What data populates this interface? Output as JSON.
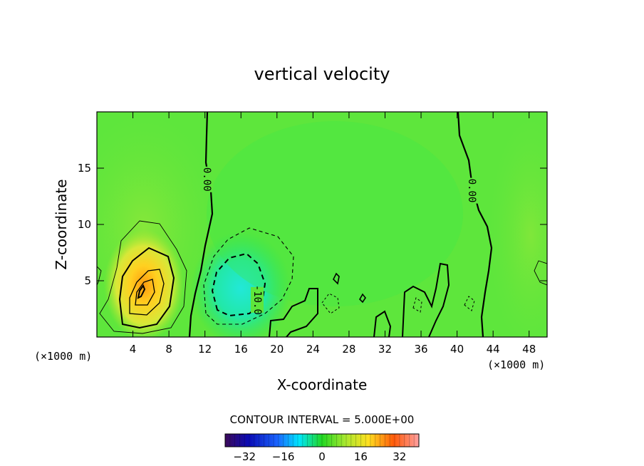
{
  "chart_data": {
    "type": "heatmap",
    "title": "vertical velocity",
    "xlabel": "X-coordinate",
    "ylabel": "Z-coordinate",
    "x_units": "(×1000 m)",
    "x_ticks": [
      4,
      8,
      12,
      16,
      20,
      24,
      28,
      32,
      36,
      40,
      44,
      48
    ],
    "y_ticks": [
      5,
      10,
      15
    ],
    "xlim": [
      0,
      50
    ],
    "ylim": [
      0,
      20
    ],
    "contour_interval_text": "CONTOUR INTERVAL = 5.000E+00",
    "contour_labels": [
      {
        "text": "0.00",
        "x": 12.2,
        "y": 14
      },
      {
        "text": "0.00",
        "x": 41.6,
        "y": 13
      },
      {
        "text": "-10.0",
        "x": 17.8,
        "y": 3.3
      }
    ],
    "colorbar": {
      "range": [
        -40,
        40
      ],
      "ticks": [
        -32,
        -16,
        0,
        16,
        32
      ],
      "tick_labels": [
        "−32",
        "−16",
        "0",
        "16",
        "32"
      ]
    },
    "features": [
      {
        "name": "updraft",
        "x": 4.8,
        "z": 4.0,
        "peak": 17
      },
      {
        "name": "downdraft",
        "x": 16.0,
        "z": 4.0,
        "peak": -16
      }
    ]
  }
}
